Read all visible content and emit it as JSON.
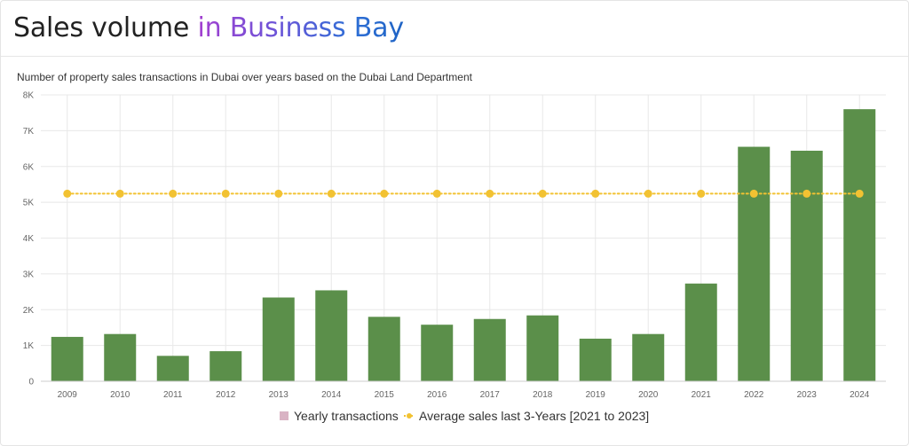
{
  "header": {
    "title_prefix": "Sales volume ",
    "title_accent": "in Business Bay"
  },
  "colors": {
    "bar": "#5b8f4a",
    "average_line": "#f2c232",
    "yearly_legend_swatch": "#d9b3c4",
    "grid": "#e8e8e8"
  },
  "chart_data": {
    "type": "bar",
    "title": "Number of property sales transactions in Dubai over years based on the Dubai Land Department",
    "xlabel": "",
    "ylabel": "",
    "categories": [
      "2009",
      "2010",
      "2011",
      "2012",
      "2013",
      "2014",
      "2015",
      "2016",
      "2017",
      "2018",
      "2019",
      "2020",
      "2021",
      "2022",
      "2023",
      "2024"
    ],
    "series": [
      {
        "name": "Yearly transactions",
        "type": "bar",
        "values": [
          1240,
          1320,
          710,
          840,
          2340,
          2540,
          1800,
          1580,
          1740,
          1840,
          1190,
          1320,
          2730,
          6550,
          6440,
          7600
        ]
      },
      {
        "name": "Average sales last 3-Years [2021 to 2023]",
        "type": "line",
        "values": [
          5240,
          5240,
          5240,
          5240,
          5240,
          5240,
          5240,
          5240,
          5240,
          5240,
          5240,
          5240,
          5240,
          5240,
          5240,
          5240
        ]
      }
    ],
    "ylim": [
      0,
      8000
    ],
    "yticks": [
      0,
      1000,
      2000,
      3000,
      4000,
      5000,
      6000,
      7000,
      8000
    ],
    "ytick_labels": [
      "0",
      "1K",
      "2K",
      "3K",
      "4K",
      "5K",
      "6K",
      "7K",
      "8K"
    ],
    "grid": true,
    "legend_position": "bottom"
  }
}
